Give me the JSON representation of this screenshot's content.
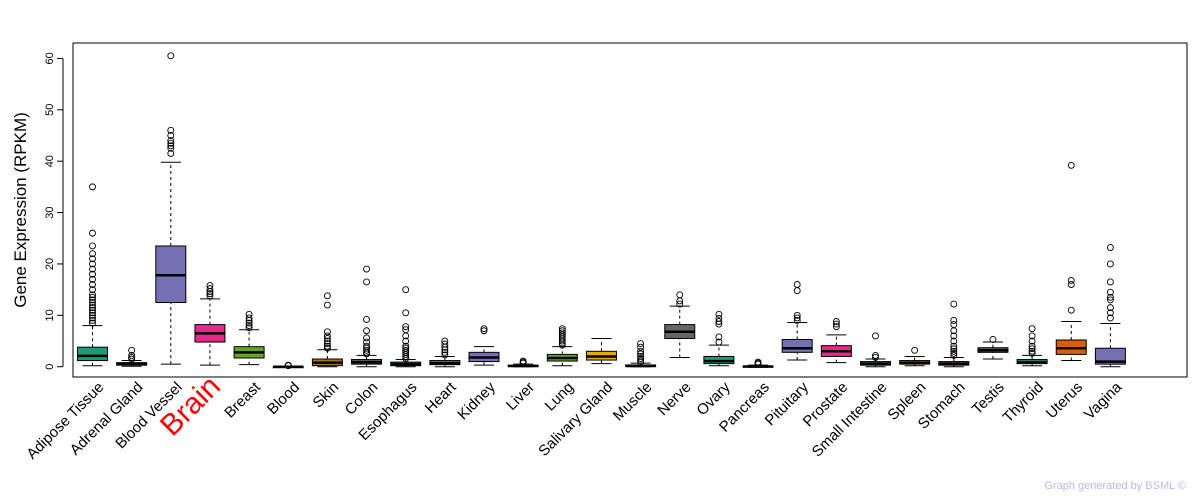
{
  "chart_data": {
    "type": "boxplot",
    "ylabel": "Gene Expression (RPKM)",
    "xlabel": "",
    "ylim": [
      -2,
      63
    ],
    "yticks": [
      0,
      10,
      20,
      30,
      40,
      50,
      60
    ],
    "highlight": {
      "category": "Brain",
      "color": "#ff0000"
    },
    "categories": [
      "Adipose Tissue",
      "Adrenal Gland",
      "Blood Vessel",
      "Brain",
      "Breast",
      "Blood",
      "Skin",
      "Colon",
      "Esophagus",
      "Heart",
      "Kidney",
      "Liver",
      "Lung",
      "Salivary Gland",
      "Muscle",
      "Nerve",
      "Ovary",
      "Pancreas",
      "Pituitary",
      "Prostate",
      "Small Intestine",
      "Spleen",
      "Stomach",
      "Testis",
      "Thyroid",
      "Uterus",
      "Vagina"
    ],
    "boxes": [
      {
        "name": "Adipose Tissue",
        "color": "#1b9e77",
        "whisker_low": 0.2,
        "q1": 1.2,
        "median": 2.1,
        "q3": 3.8,
        "whisker_high": 8.0,
        "outliers": [
          8.5,
          9.0,
          9.5,
          10.0,
          10.5,
          11.0,
          11.5,
          12.0,
          12.5,
          13.0,
          13.5,
          14.0,
          15.0,
          16.0,
          17.0,
          18.0,
          19.0,
          20.0,
          21.0,
          22.0,
          23.5,
          26.0,
          35.0
        ]
      },
      {
        "name": "Adrenal Gland",
        "color": "#d95f02",
        "whisker_low": 0.1,
        "q1": 0.3,
        "median": 0.5,
        "q3": 0.8,
        "whisker_high": 1.2,
        "outliers": [
          1.5,
          1.8,
          2.2,
          3.2
        ]
      },
      {
        "name": "Blood Vessel",
        "color": "#7570b3",
        "whisker_low": 0.5,
        "q1": 12.5,
        "median": 17.8,
        "q3": 23.5,
        "whisker_high": 39.8,
        "outliers": [
          41.5,
          42.5,
          43.0,
          43.5,
          44.0,
          45.0,
          46.0,
          60.5
        ]
      },
      {
        "name": "Brain",
        "color": "#e7298a",
        "whisker_low": 0.3,
        "q1": 4.8,
        "median": 6.5,
        "q3": 8.2,
        "whisker_high": 13.2,
        "outliers": [
          13.8,
          14.2,
          14.6,
          15.2,
          15.8
        ]
      },
      {
        "name": "Breast",
        "color": "#66a61e",
        "whisker_low": 0.4,
        "q1": 1.7,
        "median": 2.8,
        "q3": 3.9,
        "whisker_high": 7.2,
        "outliers": [
          7.6,
          8.0,
          8.5,
          9.0,
          9.5,
          10.2
        ]
      },
      {
        "name": "Blood",
        "color": "#e6ab02",
        "whisker_low": -0.1,
        "q1": -0.1,
        "median": 0.0,
        "q3": 0.0,
        "whisker_high": 0.1,
        "outliers": [
          0.2,
          0.3
        ]
      },
      {
        "name": "Skin",
        "color": "#a6761d",
        "whisker_low": 0.0,
        "q1": 0.2,
        "median": 0.8,
        "q3": 1.5,
        "whisker_high": 3.3,
        "outliers": [
          3.6,
          4.0,
          4.5,
          5.0,
          5.5,
          6.0,
          6.8,
          12.0,
          13.8
        ]
      },
      {
        "name": "Colon",
        "color": "#666666",
        "whisker_low": 0.0,
        "q1": 0.5,
        "median": 0.9,
        "q3": 1.4,
        "whisker_high": 2.2,
        "outliers": [
          2.5,
          2.8,
          3.2,
          3.6,
          4.0,
          4.8,
          5.6,
          7.0,
          9.2,
          16.5,
          19.0
        ]
      },
      {
        "name": "Esophagus",
        "color": "#1b9e77",
        "whisker_low": 0.0,
        "q1": 0.2,
        "median": 0.5,
        "q3": 0.9,
        "whisker_high": 1.4,
        "outliers": [
          1.6,
          2.0,
          2.4,
          2.8,
          3.2,
          3.6,
          4.0,
          5.0,
          6.0,
          7.2,
          7.8,
          10.5,
          15.0
        ]
      },
      {
        "name": "Heart",
        "color": "#d95f02",
        "whisker_low": 0.0,
        "q1": 0.4,
        "median": 0.7,
        "q3": 1.2,
        "whisker_high": 2.0,
        "outliers": [
          2.3,
          2.8,
          3.3,
          3.8,
          4.4,
          5.0
        ]
      },
      {
        "name": "Kidney",
        "color": "#7570b3",
        "whisker_low": 0.3,
        "q1": 1.0,
        "median": 1.8,
        "q3": 2.8,
        "whisker_high": 3.9,
        "outliers": [
          7.0,
          7.4
        ]
      },
      {
        "name": "Liver",
        "color": "#e7298a",
        "whisker_low": 0.0,
        "q1": 0.05,
        "median": 0.15,
        "q3": 0.3,
        "whisker_high": 0.5,
        "outliers": [
          0.7,
          0.9,
          1.1
        ]
      },
      {
        "name": "Lung",
        "color": "#66a61e",
        "whisker_low": 0.2,
        "q1": 1.1,
        "median": 1.7,
        "q3": 2.4,
        "whisker_high": 3.9,
        "outliers": [
          4.2,
          4.6,
          5.0,
          5.4,
          5.8,
          6.2,
          6.6,
          7.0,
          7.4
        ]
      },
      {
        "name": "Salivary Gland",
        "color": "#e6ab02",
        "whisker_low": 0.6,
        "q1": 1.3,
        "median": 2.0,
        "q3": 3.0,
        "whisker_high": 5.5,
        "outliers": []
      },
      {
        "name": "Muscle",
        "color": "#a6761d",
        "whisker_low": 0.0,
        "q1": 0.05,
        "median": 0.15,
        "q3": 0.35,
        "whisker_high": 0.7,
        "outliers": [
          0.9,
          1.2,
          1.6,
          2.0,
          2.5,
          3.0,
          3.8,
          4.5
        ]
      },
      {
        "name": "Nerve",
        "color": "#666666",
        "whisker_low": 1.8,
        "q1": 5.5,
        "median": 6.8,
        "q3": 8.2,
        "whisker_high": 11.8,
        "outliers": [
          12.2,
          12.8,
          14.0
        ]
      },
      {
        "name": "Ovary",
        "color": "#1b9e77",
        "whisker_low": 0.2,
        "q1": 0.6,
        "median": 1.1,
        "q3": 2.0,
        "whisker_high": 4.2,
        "outliers": [
          4.8,
          5.8,
          8.3,
          8.8,
          9.4,
          10.2
        ]
      },
      {
        "name": "Pancreas",
        "color": "#d95f02",
        "whisker_low": -0.1,
        "q1": 0.0,
        "median": 0.05,
        "q3": 0.1,
        "whisker_high": 0.3,
        "outliers": [
          0.5,
          0.7,
          0.9
        ]
      },
      {
        "name": "Pituitary",
        "color": "#7570b3",
        "whisker_low": 1.3,
        "q1": 2.8,
        "median": 3.6,
        "q3": 5.3,
        "whisker_high": 8.6,
        "outliers": [
          9.0,
          9.5,
          10.0,
          14.8,
          16.0
        ]
      },
      {
        "name": "Prostate",
        "color": "#e7298a",
        "whisker_low": 0.8,
        "q1": 2.0,
        "median": 3.0,
        "q3": 4.1,
        "whisker_high": 6.2,
        "outliers": [
          7.8,
          8.3,
          8.8
        ]
      },
      {
        "name": "Small Intestine",
        "color": "#66a61e",
        "whisker_low": 0.0,
        "q1": 0.3,
        "median": 0.6,
        "q3": 1.0,
        "whisker_high": 1.5,
        "outliers": [
          1.8,
          2.2,
          6.0
        ]
      },
      {
        "name": "Spleen",
        "color": "#e6ab02",
        "whisker_low": 0.2,
        "q1": 0.5,
        "median": 0.8,
        "q3": 1.2,
        "whisker_high": 2.0,
        "outliers": [
          3.2
        ]
      },
      {
        "name": "Stomach",
        "color": "#a6761d",
        "whisker_low": 0.0,
        "q1": 0.3,
        "median": 0.6,
        "q3": 1.0,
        "whisker_high": 1.8,
        "outliers": [
          2.2,
          2.6,
          3.0,
          3.5,
          4.0,
          5.0,
          6.0,
          7.0,
          8.2,
          9.0,
          12.2
        ]
      },
      {
        "name": "Testis",
        "color": "#666666",
        "whisker_low": 1.5,
        "q1": 2.8,
        "median": 3.2,
        "q3": 3.7,
        "whisker_high": 4.8,
        "outliers": [
          5.3
        ]
      },
      {
        "name": "Thyroid",
        "color": "#1b9e77",
        "whisker_low": 0.2,
        "q1": 0.6,
        "median": 0.9,
        "q3": 1.4,
        "whisker_high": 2.2,
        "outliers": [
          2.6,
          3.0,
          3.5,
          4.0,
          5.0,
          6.0,
          7.4
        ]
      },
      {
        "name": "Uterus",
        "color": "#d95f02",
        "whisker_low": 1.2,
        "q1": 2.4,
        "median": 3.6,
        "q3": 5.2,
        "whisker_high": 8.8,
        "outliers": [
          11.0,
          16.0,
          16.8,
          39.2
        ]
      },
      {
        "name": "Vagina",
        "color": "#7570b3",
        "whisker_low": 0.0,
        "q1": 0.5,
        "median": 1.0,
        "q3": 3.6,
        "whisker_high": 8.4,
        "outliers": [
          9.5,
          10.5,
          11.5,
          13.0,
          13.5,
          14.5,
          16.5,
          20.0,
          23.2
        ]
      }
    ]
  },
  "footer": {
    "credit": "Graph generated by BSML ©"
  }
}
